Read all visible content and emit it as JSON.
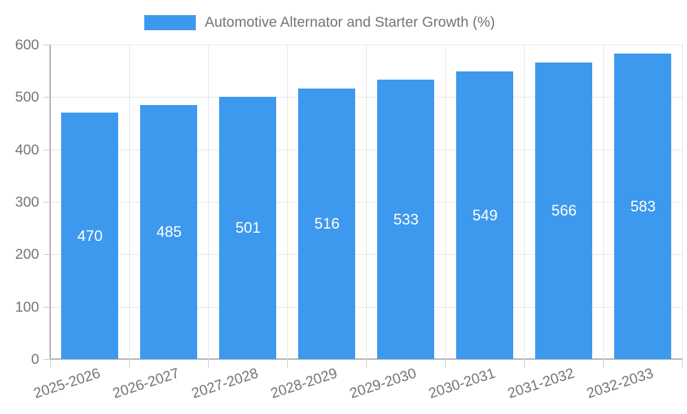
{
  "legend": {
    "label": "Automotive Alternator and Starter Growth (%)"
  },
  "chart_data": {
    "type": "bar",
    "title": "Automotive Alternator and Starter Growth (%)",
    "categories": [
      "2025-2026",
      "2026-2027",
      "2027-2028",
      "2028-2029",
      "2029-2030",
      "2030-2031",
      "2031-2032",
      "2032-2033"
    ],
    "values": [
      470,
      485,
      501,
      516,
      533,
      549,
      566,
      583
    ],
    "xlabel": "",
    "ylabel": "",
    "ylim": [
      0,
      600
    ],
    "yticks": [
      0,
      100,
      200,
      300,
      400,
      500,
      600
    ],
    "grid": true,
    "legend_position": "top",
    "value_labels": "inside-middle",
    "x_label_rotation_deg": -18
  },
  "colors": {
    "bar": "#3D99ED",
    "value_text": "#FFFFFF",
    "axis_text": "#757575",
    "gridline": "#E6E6E6",
    "axis_line": "#B0B0B0",
    "tick": "#C9C9C9",
    "background": "#FFFFFF"
  }
}
